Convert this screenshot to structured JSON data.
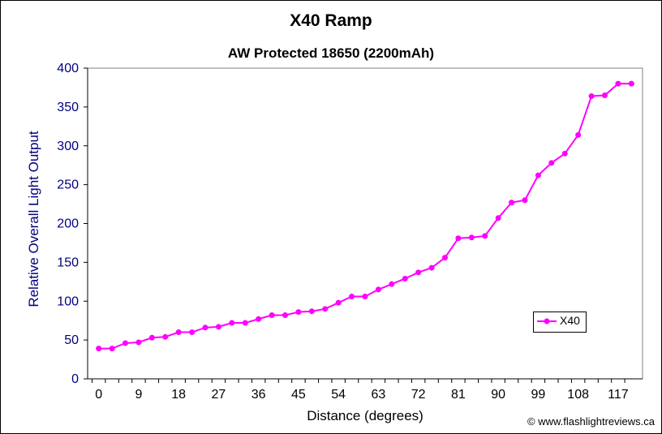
{
  "chart_data": {
    "type": "line",
    "title": "X40 Ramp",
    "subtitle": "AW Protected 18650 (2200mAh)",
    "xlabel": "Distance (degrees)",
    "ylabel": "Relative Overall Light Output",
    "credit": "© www.flashlightreviews.ca",
    "ylim": [
      0,
      400
    ],
    "y_ticks": [
      0,
      50,
      100,
      150,
      200,
      250,
      300,
      350,
      400
    ],
    "x_ticks": [
      0,
      9,
      18,
      27,
      36,
      45,
      54,
      63,
      72,
      81,
      90,
      99,
      108,
      117
    ],
    "grid": false,
    "legend": "right",
    "line_color": "#ff00ff",
    "series": [
      {
        "name": "X40",
        "x": [
          0,
          3,
          6,
          9,
          12,
          15,
          18,
          21,
          24,
          27,
          30,
          33,
          36,
          39,
          42,
          45,
          48,
          51,
          54,
          57,
          60,
          63,
          66,
          69,
          72,
          75,
          78,
          81,
          84,
          87,
          90,
          93,
          96,
          99,
          102,
          105,
          108,
          111,
          114,
          117,
          120
        ],
        "values": [
          39,
          39,
          46,
          47,
          53,
          54,
          60,
          60,
          66,
          67,
          72,
          72,
          77,
          82,
          82,
          86,
          87,
          90,
          98,
          106,
          106,
          115,
          122,
          129,
          137,
          143,
          156,
          181,
          182,
          184,
          207,
          227,
          230,
          262,
          278,
          290,
          314,
          364,
          365,
          380,
          380
        ]
      }
    ]
  }
}
